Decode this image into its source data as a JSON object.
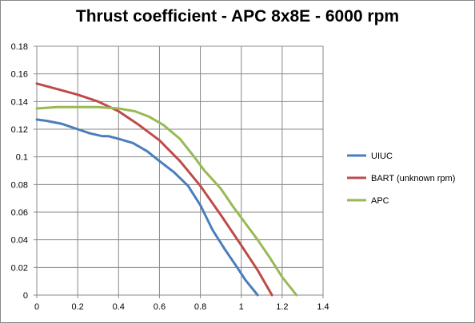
{
  "chart_data": {
    "type": "line",
    "title": "Thrust coefficient - APC 8x8E - 6000 rpm",
    "xlabel": "",
    "ylabel": "",
    "xlim": [
      0,
      1.4
    ],
    "ylim": [
      0,
      0.18
    ],
    "x_ticks": [
      "0",
      "0.2",
      "0.4",
      "0.6",
      "0.8",
      "1",
      "1.2",
      "1.4"
    ],
    "y_ticks": [
      "0",
      "0.02",
      "0.04",
      "0.06",
      "0.08",
      "0.1",
      "0.12",
      "0.14",
      "0.16",
      "0.18"
    ],
    "grid": "major",
    "legend_position": "right",
    "series": [
      {
        "name": "UIUC",
        "color": "#4a7ebb",
        "points": [
          [
            0,
            0.127
          ],
          [
            0.05,
            0.126
          ],
          [
            0.12,
            0.124
          ],
          [
            0.2,
            0.12
          ],
          [
            0.26,
            0.117
          ],
          [
            0.32,
            0.115
          ],
          [
            0.35,
            0.115
          ],
          [
            0.4,
            0.113
          ],
          [
            0.47,
            0.11
          ],
          [
            0.54,
            0.104
          ],
          [
            0.6,
            0.097
          ],
          [
            0.67,
            0.089
          ],
          [
            0.74,
            0.079
          ],
          [
            0.8,
            0.065
          ],
          [
            0.86,
            0.047
          ],
          [
            0.92,
            0.033
          ],
          [
            0.98,
            0.02
          ],
          [
            1.02,
            0.011
          ],
          [
            1.08,
            0
          ]
        ]
      },
      {
        "name": "BART (unknown rpm)",
        "color": "#be4b48",
        "points": [
          [
            0,
            0.153
          ],
          [
            0.1,
            0.149
          ],
          [
            0.2,
            0.145
          ],
          [
            0.3,
            0.14
          ],
          [
            0.4,
            0.133
          ],
          [
            0.5,
            0.123
          ],
          [
            0.6,
            0.112
          ],
          [
            0.7,
            0.097
          ],
          [
            0.8,
            0.079
          ],
          [
            0.9,
            0.058
          ],
          [
            1,
            0.036
          ],
          [
            1.08,
            0.018
          ],
          [
            1.15,
            0
          ]
        ]
      },
      {
        "name": "APC",
        "color": "#98b954",
        "points": [
          [
            0,
            0.135
          ],
          [
            0.1,
            0.136
          ],
          [
            0.2,
            0.136
          ],
          [
            0.3,
            0.136
          ],
          [
            0.4,
            0.135
          ],
          [
            0.48,
            0.133
          ],
          [
            0.55,
            0.129
          ],
          [
            0.62,
            0.123
          ],
          [
            0.7,
            0.113
          ],
          [
            0.77,
            0.1
          ],
          [
            0.82,
            0.09
          ],
          [
            0.9,
            0.077
          ],
          [
            0.96,
            0.064
          ],
          [
            1.02,
            0.052
          ],
          [
            1.08,
            0.04
          ],
          [
            1.14,
            0.027
          ],
          [
            1.2,
            0.013
          ],
          [
            1.27,
            0
          ]
        ]
      }
    ]
  }
}
